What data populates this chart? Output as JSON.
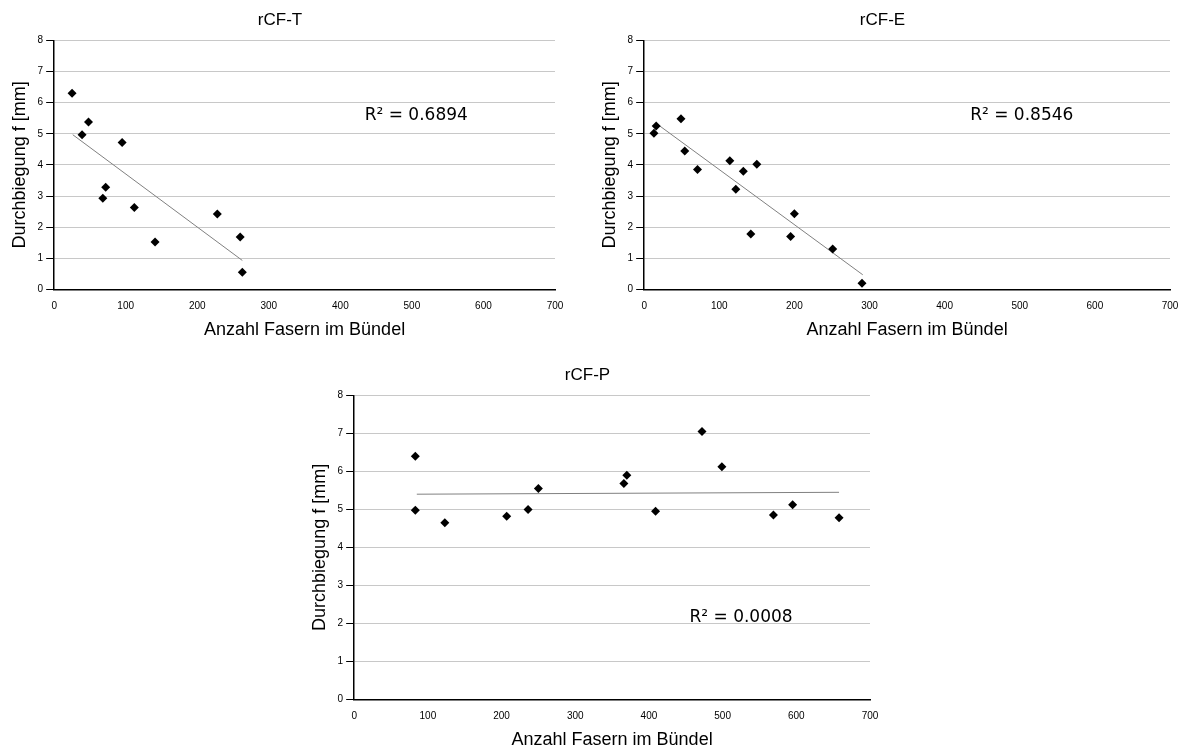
{
  "chart_data": [
    {
      "type": "scatter",
      "title": "rCF-T",
      "xlabel": "Anzahl Fasern im Bündel",
      "ylabel": "Durchbiegung f [mm]",
      "xlim": [
        0,
        700
      ],
      "xticks": [
        0,
        100,
        200,
        300,
        400,
        500,
        600,
        700
      ],
      "ylim": [
        0,
        8
      ],
      "yticks": [
        0,
        1,
        2,
        3,
        4,
        5,
        6,
        7,
        8
      ],
      "grid": "y",
      "legend": false,
      "marker": "diamond",
      "annotations": [
        "R² = 0.6894"
      ],
      "series": [
        {
          "color": "#000000",
          "x": [
            25,
            39,
            48,
            95,
            72,
            68,
            112,
            141,
            228,
            260,
            263
          ],
          "values": [
            6.3,
            4.97,
            5.38,
            4.72,
            3.28,
            2.93,
            2.63,
            1.52,
            2.42,
            1.68,
            0.55
          ]
        },
        {
          "type": "line",
          "color": "#808080",
          "marker": "none",
          "x": [
            26,
            263
          ],
          "values": [
            4.97,
            0.93
          ]
        }
      ]
    },
    {
      "type": "scatter",
      "title": "rCF-E",
      "xlabel": "Anzahl Fasern im Bündel",
      "ylabel": "Durchbiegung f [mm]",
      "xlim": [
        0,
        700
      ],
      "xticks": [
        0,
        100,
        200,
        300,
        400,
        500,
        600,
        700
      ],
      "ylim": [
        0,
        8
      ],
      "yticks": [
        0,
        1,
        2,
        3,
        4,
        5,
        6,
        7,
        8
      ],
      "grid": "y",
      "legend": false,
      "marker": "diamond",
      "annotations": [
        "R² = 0.8546"
      ],
      "series": [
        {
          "color": "#000000",
          "x": [
            13,
            16,
            49,
            54,
            71,
            114,
            122,
            132,
            150,
            142,
            200,
            195,
            251,
            290
          ],
          "values": [
            5.02,
            5.25,
            5.48,
            4.45,
            3.85,
            4.13,
            3.22,
            3.8,
            4.02,
            1.78,
            2.43,
            1.7,
            1.3,
            0.2
          ]
        },
        {
          "type": "line",
          "color": "#808080",
          "marker": "none",
          "x": [
            18,
            291
          ],
          "values": [
            5.3,
            0.47
          ]
        }
      ]
    },
    {
      "type": "scatter",
      "title": "rCF-P",
      "xlabel": "Anzahl Fasern im Bündel",
      "ylabel": "Durchbiegung f [mm]",
      "xlim": [
        0,
        700
      ],
      "xticks": [
        0,
        100,
        200,
        300,
        400,
        500,
        600,
        700
      ],
      "ylim": [
        0,
        8
      ],
      "yticks": [
        0,
        1,
        2,
        3,
        4,
        5,
        6,
        7,
        8
      ],
      "grid": "y",
      "legend": false,
      "marker": "diamond",
      "annotations": [
        "R² = 0.0008"
      ],
      "series": [
        {
          "color": "#000000",
          "x": [
            83,
            83,
            123,
            207,
            236,
            250,
            366,
            370,
            409,
            472,
            499,
            569,
            595,
            658
          ],
          "values": [
            6.4,
            4.98,
            4.65,
            4.82,
            5.0,
            5.55,
            5.68,
            5.9,
            4.95,
            7.05,
            6.12,
            4.85,
            5.12,
            4.78
          ]
        },
        {
          "type": "line",
          "color": "#808080",
          "marker": "none",
          "x": [
            85,
            658
          ],
          "values": [
            5.4,
            5.45
          ]
        }
      ]
    }
  ]
}
